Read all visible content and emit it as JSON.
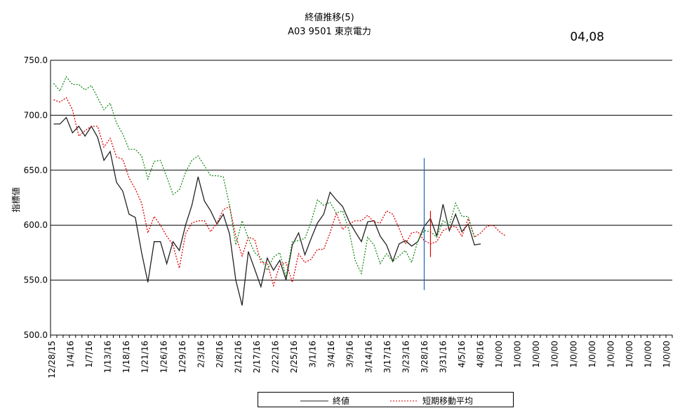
{
  "header": {
    "title": "終値推移(5)",
    "subtitle": "A03  9501 東京電力",
    "date_label": "04,08"
  },
  "colors": {
    "close": "#222222",
    "short_ma": "#e00000",
    "long_ma": "#1a8a1a",
    "marker_blue": "#1f5fbf",
    "marker_red": "#e00000"
  },
  "chart_data": {
    "type": "line",
    "ylabel": "指標値",
    "ylim": [
      500,
      750
    ],
    "yticks": [
      "750.0",
      "700.0",
      "650.0",
      "600.0",
      "550.0",
      "500.0"
    ],
    "grid": true,
    "legend": "bottom",
    "xtick_labels": [
      "12/28/15",
      "1/4/16",
      "1/7/16",
      "1/13/16",
      "1/18/16",
      "1/21/16",
      "1/26/16",
      "1/29/16",
      "2/3/16",
      "2/8/16",
      "2/12/16",
      "2/17/16",
      "2/22/16",
      "2/25/16",
      "3/1/16",
      "3/4/16",
      "3/9/16",
      "3/14/16",
      "3/17/16",
      "3/23/16",
      "3/28/16",
      "3/31/16",
      "4/5/16",
      "4/8/16",
      "1/0/00",
      "1/0/00",
      "1/0/00",
      "1/0/00",
      "1/0/00",
      "1/0/00",
      "1/0/00",
      "1/0/00",
      "1/0/00",
      "1/0/00"
    ],
    "series": [
      {
        "name": "終値",
        "style": "solid",
        "values": [
          692,
          692,
          698,
          684,
          690,
          681,
          690,
          680,
          659,
          667,
          639,
          631,
          610,
          607,
          575,
          548,
          585,
          585,
          565,
          585,
          577,
          600,
          618,
          644,
          622,
          613,
          601,
          610,
          592,
          550,
          527,
          576,
          560,
          544,
          570,
          559,
          568,
          550,
          582,
          593,
          573,
          588,
          602,
          610,
          630,
          623,
          617,
          604,
          594,
          585,
          603,
          604,
          590,
          582,
          567,
          583,
          586,
          581,
          585,
          599,
          606,
          590,
          619,
          595,
          610,
          594,
          601,
          582,
          583
        ]
      },
      {
        "name": "短期移動平均",
        "style": "dashed",
        "values": [
          714,
          712,
          716,
          705,
          681,
          686,
          690,
          690,
          671,
          679,
          662,
          660,
          643,
          633,
          620,
          593,
          608,
          600,
          590,
          582,
          561,
          592,
          602,
          604,
          604,
          594,
          602,
          614,
          617,
          590,
          572,
          589,
          587,
          566,
          566,
          545,
          564,
          566,
          548,
          574,
          566,
          569,
          578,
          578,
          593,
          611,
          596,
          601,
          604,
          604,
          609,
          603,
          602,
          613,
          610,
          597,
          583,
          593,
          594,
          586,
          583,
          585,
          595,
          598,
          599,
          590,
          606,
          589,
          593,
          599,
          600,
          594,
          590
        ]
      },
      {
        "name": "",
        "style": "dashed",
        "values": [
          729,
          722,
          735,
          728,
          728,
          723,
          727,
          716,
          705,
          711,
          693,
          683,
          669,
          669,
          663,
          642,
          658,
          659,
          644,
          628,
          632,
          648,
          659,
          663,
          654,
          645,
          645,
          644,
          618,
          582,
          604,
          588,
          575,
          570,
          559,
          571,
          575,
          553,
          585,
          586,
          588,
          603,
          623,
          618,
          621,
          611,
          613,
          596,
          568,
          556,
          589,
          582,
          565,
          574,
          567,
          572,
          577,
          566,
          586,
          595,
          594,
          589,
          604,
          600,
          620,
          608,
          608,
          589
        ]
      }
    ],
    "markers": [
      {
        "series_color": "marker_blue",
        "x_index": 59,
        "y_range": [
          541,
          661
        ]
      },
      {
        "series_color": "marker_red",
        "x_index": 60,
        "y_range": [
          571,
          613
        ]
      }
    ]
  }
}
